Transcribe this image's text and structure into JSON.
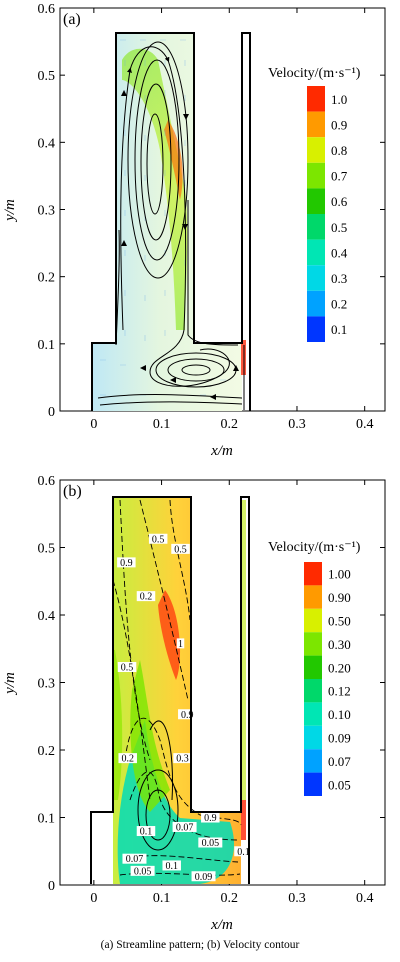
{
  "caption": "(a) Streamline pattern; (b) Velocity contour",
  "chart_data": [
    {
      "type": "vector_field",
      "panel_label": "(a)",
      "title": "",
      "xlabel": "x/m",
      "ylabel": "y/m",
      "xlim": [
        -0.05,
        0.43
      ],
      "ylim": [
        0,
        0.6
      ],
      "xticks": [
        0,
        0.1,
        0.2,
        0.3,
        0.4
      ],
      "yticks": [
        0,
        0.1,
        0.2,
        0.3,
        0.4,
        0.5,
        0.6
      ],
      "grid": false,
      "legend": {
        "title": "Velocity/(m·s⁻¹)",
        "placement": "right",
        "levels": [
          {
            "label": "1.0",
            "color": "#ff2a00"
          },
          {
            "label": "0.9",
            "color": "#ff9a00"
          },
          {
            "label": "0.8",
            "color": "#d8f000"
          },
          {
            "label": "0.7",
            "color": "#7ce600"
          },
          {
            "label": "0.6",
            "color": "#22c800"
          },
          {
            "label": "0.5",
            "color": "#00d86a"
          },
          {
            "label": "0.4",
            "color": "#00e6b4"
          },
          {
            "label": "0.3",
            "color": "#00d8e6"
          },
          {
            "label": "0.2",
            "color": "#00a2ff"
          },
          {
            "label": "0.1",
            "color": "#0036ff"
          }
        ]
      },
      "geometry_outline_m": [
        [
          0,
          0
        ],
        [
          0,
          0.11
        ],
        [
          0.035,
          0.11
        ],
        [
          0.035,
          0.565
        ],
        [
          0.145,
          0.565
        ],
        [
          0.145,
          0.11
        ],
        [
          0.222,
          0.11
        ],
        [
          0.222,
          0.565
        ],
        [
          0.232,
          0.565
        ],
        [
          0.232,
          0
        ],
        [
          0,
          0
        ]
      ]
    },
    {
      "type": "contour",
      "panel_label": "(b)",
      "title": "",
      "xlabel": "x/m",
      "ylabel": "y/m",
      "xlim": [
        -0.05,
        0.43
      ],
      "ylim": [
        0,
        0.6
      ],
      "xticks": [
        0,
        0.1,
        0.2,
        0.3,
        0.4
      ],
      "yticks": [
        0,
        0.1,
        0.2,
        0.3,
        0.4,
        0.5,
        0.6
      ],
      "grid": false,
      "legend": {
        "title": "Velocity/(m·s⁻¹)",
        "placement": "right",
        "levels": [
          {
            "label": "1.00",
            "color": "#ff2a00"
          },
          {
            "label": "0.90",
            "color": "#ff9a00"
          },
          {
            "label": "0.50",
            "color": "#d8f000"
          },
          {
            "label": "0.30",
            "color": "#7ce600"
          },
          {
            "label": "0.20",
            "color": "#22c800"
          },
          {
            "label": "0.12",
            "color": "#00d86a"
          },
          {
            "label": "0.10",
            "color": "#00e6b4"
          },
          {
            "label": "0.09",
            "color": "#00d8e6"
          },
          {
            "label": "0.07",
            "color": "#00a2ff"
          },
          {
            "label": "0.05",
            "color": "#0036ff"
          }
        ]
      },
      "contour_labels": [
        {
          "text": "0.5",
          "x": 0.095,
          "y": 0.51
        },
        {
          "text": "0.5",
          "x": 0.128,
          "y": 0.495
        },
        {
          "text": "0.9",
          "x": 0.048,
          "y": 0.475
        },
        {
          "text": "0.2",
          "x": 0.077,
          "y": 0.425
        },
        {
          "text": "0.5",
          "x": 0.049,
          "y": 0.32
        },
        {
          "text": "1",
          "x": 0.128,
          "y": 0.355
        },
        {
          "text": "0.9",
          "x": 0.138,
          "y": 0.25
        },
        {
          "text": "0.2",
          "x": 0.05,
          "y": 0.185
        },
        {
          "text": "0.3",
          "x": 0.131,
          "y": 0.185
        },
        {
          "text": "0.9",
          "x": 0.172,
          "y": 0.097
        },
        {
          "text": "0.1",
          "x": 0.077,
          "y": 0.077
        },
        {
          "text": "0.07",
          "x": 0.134,
          "y": 0.083
        },
        {
          "text": "0.05",
          "x": 0.172,
          "y": 0.06
        },
        {
          "text": "0.07",
          "x": 0.06,
          "y": 0.036
        },
        {
          "text": "0.1",
          "x": 0.115,
          "y": 0.026
        },
        {
          "text": "0.05",
          "x": 0.072,
          "y": 0.018
        },
        {
          "text": "0.09",
          "x": 0.162,
          "y": 0.01
        },
        {
          "text": "0.1",
          "x": 0.221,
          "y": 0.047
        }
      ],
      "geometry_outline_m": [
        [
          0,
          0
        ],
        [
          0,
          0.11
        ],
        [
          0.035,
          0.11
        ],
        [
          0.035,
          0.565
        ],
        [
          0.145,
          0.565
        ],
        [
          0.145,
          0.11
        ],
        [
          0.222,
          0.11
        ],
        [
          0.222,
          0.565
        ],
        [
          0.232,
          0.565
        ],
        [
          0.232,
          0
        ],
        [
          0,
          0
        ]
      ]
    }
  ]
}
